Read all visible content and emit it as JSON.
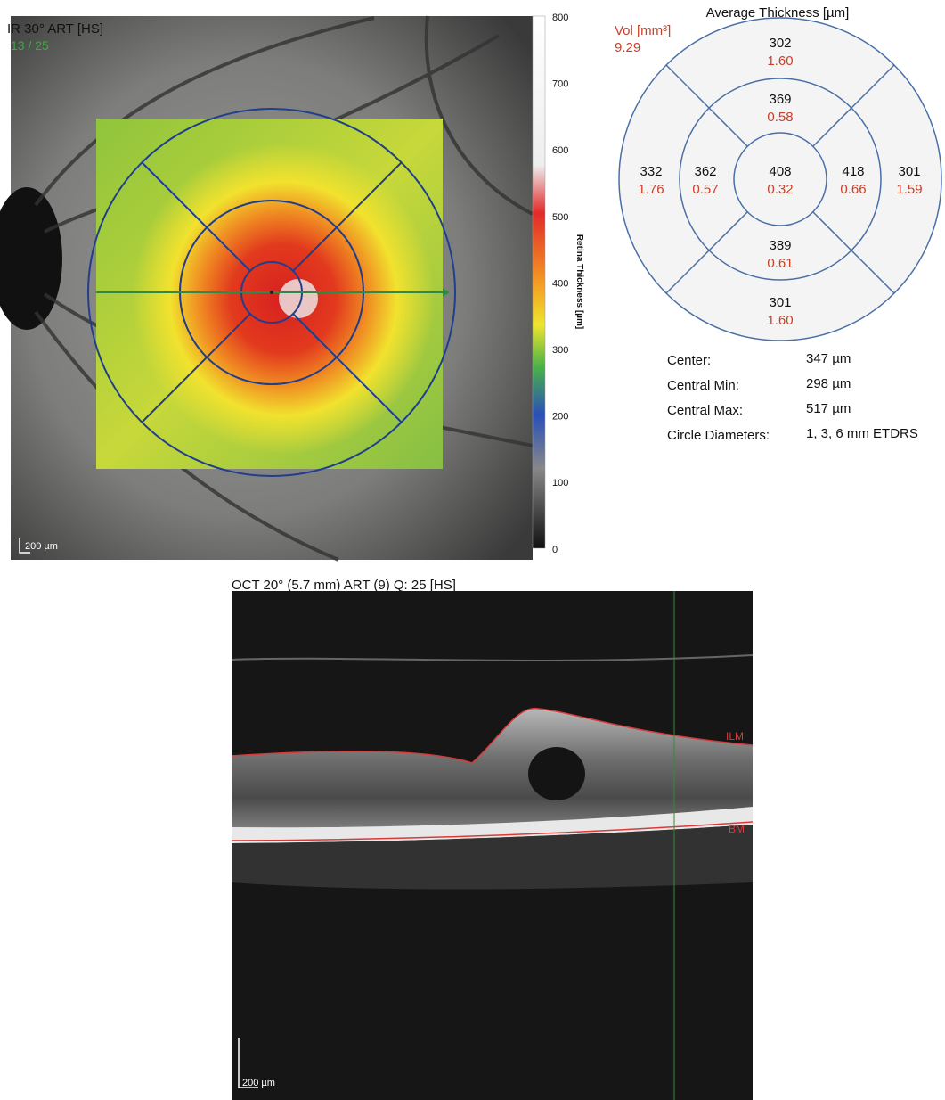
{
  "fundus": {
    "title": "IR 30° ART [HS]",
    "frame": "13 / 25",
    "scale": "200 µm"
  },
  "colorbar": {
    "label": "Retina Thickness [µm]",
    "ticks": [
      800,
      700,
      600,
      500,
      400,
      300,
      200,
      100,
      0
    ]
  },
  "etdrs": {
    "title": "Average Thickness [µm]",
    "vol_label": "Vol [mm³]",
    "total_volume": "9.29",
    "sectors": [
      {
        "thickness": 302,
        "volume": "1.60"
      },
      {
        "thickness": 369,
        "volume": "0.58"
      },
      {
        "thickness": 332,
        "volume": "1.76"
      },
      {
        "thickness": 362,
        "volume": "0.57"
      },
      {
        "thickness": 408,
        "volume": "0.32"
      },
      {
        "thickness": 418,
        "volume": "0.66"
      },
      {
        "thickness": 301,
        "volume": "1.59"
      },
      {
        "thickness": 389,
        "volume": "0.61"
      },
      {
        "thickness": 301,
        "volume": "1.60"
      }
    ]
  },
  "stats": [
    [
      "Center:",
      "347 µm"
    ],
    [
      "Central Min:",
      "298 µm"
    ],
    [
      "Central Max:",
      "517 µm"
    ],
    [
      "Circle Diameters:",
      "1, 3, 6 mm ETDRS"
    ]
  ],
  "oct": {
    "title": "OCT 20° (5.7 mm) ART (9) Q: 25 [HS]",
    "ilm": "ILM",
    "bm": "BM",
    "scale": "200 µm"
  }
}
